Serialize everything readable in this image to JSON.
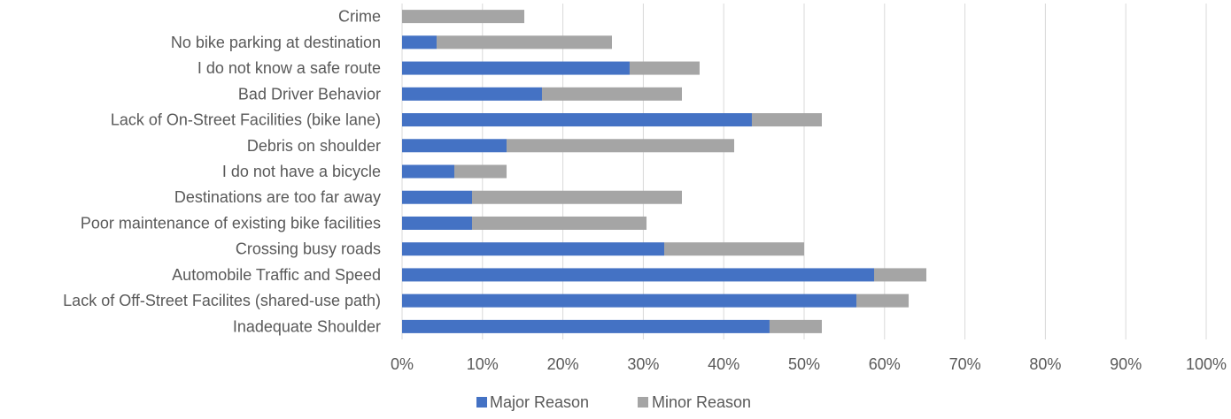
{
  "chart_data": {
    "type": "bar",
    "orientation": "horizontal",
    "stacked": true,
    "categories": [
      "Crime",
      "No bike parking at destination",
      "I do not know a safe route",
      "Bad Driver Behavior",
      "Lack of On-Street Facilities (bike lane)",
      "Debris on shoulder",
      "I do not have a bicycle",
      "Destinations are too far away",
      "Poor maintenance of existing bike facilities",
      "Crossing busy roads",
      "Automobile Traffic and Speed",
      "Lack of Off-Street Facilites (shared-use path)",
      "Inadequate Shoulder"
    ],
    "series": [
      {
        "name": "Major Reason",
        "color": "#4472C4",
        "values": [
          0.0,
          4.3,
          28.3,
          17.4,
          43.5,
          13.0,
          6.5,
          8.7,
          8.7,
          32.6,
          58.7,
          56.5,
          45.7
        ]
      },
      {
        "name": "Minor Reason",
        "color": "#A5A5A5",
        "values": [
          15.2,
          21.8,
          8.7,
          17.4,
          8.7,
          28.3,
          6.5,
          26.1,
          21.7,
          17.4,
          6.5,
          6.5,
          6.5
        ]
      }
    ],
    "xlim": [
      0,
      100
    ],
    "x_ticks": [
      "0%",
      "10%",
      "20%",
      "30%",
      "40%",
      "50%",
      "60%",
      "70%",
      "80%",
      "90%",
      "100%"
    ],
    "grid": "vertical",
    "legend_position": "bottom",
    "title": "",
    "xlabel": "",
    "ylabel": ""
  }
}
